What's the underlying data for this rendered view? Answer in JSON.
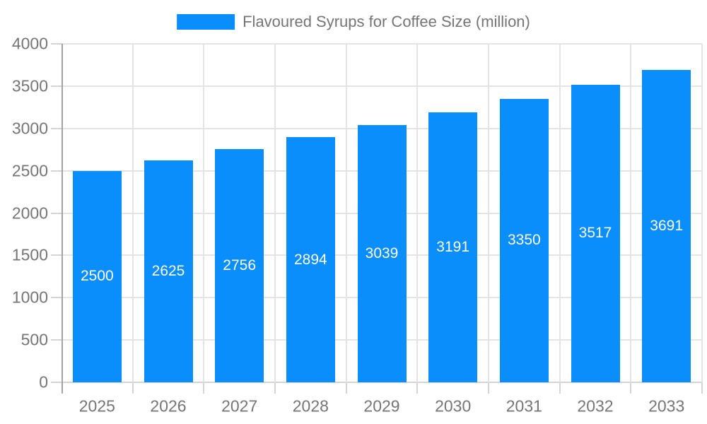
{
  "chart_data": {
    "type": "bar",
    "title": "Flavoured Syrups for Coffee Size (million)",
    "categories": [
      "2025",
      "2026",
      "2027",
      "2028",
      "2029",
      "2030",
      "2031",
      "2032",
      "2033"
    ],
    "values": [
      2500,
      2625,
      2756,
      2894,
      3039,
      3191,
      3350,
      3517,
      3691
    ],
    "series_name": "Flavoured Syrups for Coffee Size (million)",
    "ylim": [
      0,
      4000
    ],
    "yticks": [
      0,
      500,
      1000,
      1500,
      2000,
      2500,
      3000,
      3500,
      4000
    ],
    "grid": true,
    "legend_position": "top",
    "colors": {
      "bar": "#098EFC",
      "value_label": "#FFFFFF",
      "axis_label": "#757575",
      "gridline": "#E4E4E4",
      "baseline": "#D4D4D4",
      "tick": "#D4D4D4",
      "axis_line": "#A3A3A3"
    }
  },
  "legend": {
    "label": "Flavoured Syrups for Coffee Size (million)",
    "swatch_color": "#098EFC"
  }
}
